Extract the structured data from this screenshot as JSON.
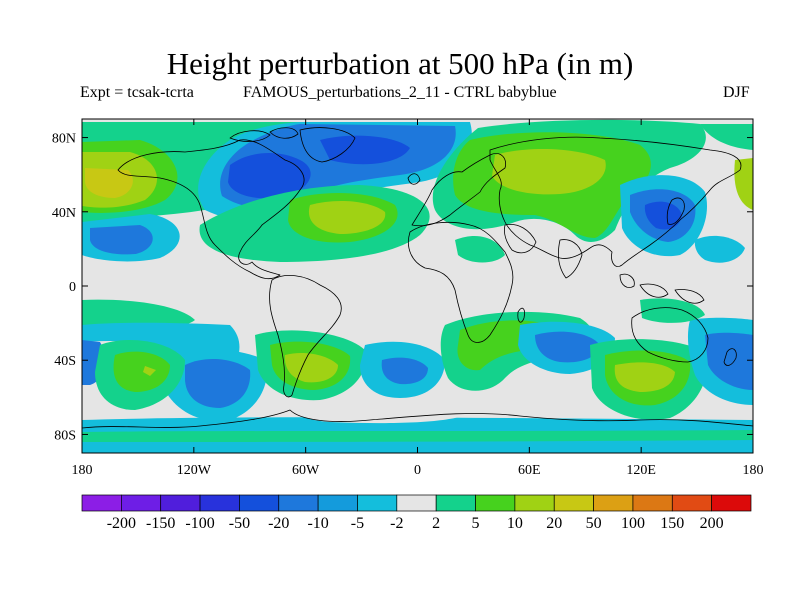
{
  "title": "Height perturbation at 500 hPa (in m)",
  "expt_label": "Expt = tcsak-tcrta",
  "subtitle": "FAMOUS_perturbations_2_11 - CTRL babyblue",
  "season": "DJF",
  "map": {
    "projection": "cylindrical-equidistant",
    "lon_range": [
      -180,
      180
    ],
    "lat_range": [
      -90,
      90
    ],
    "background_color": "#e5e5e5",
    "lat_ticks": [
      {
        "label": "80N",
        "value": 80
      },
      {
        "label": "40N",
        "value": 40
      },
      {
        "label": "0",
        "value": 0
      },
      {
        "label": "40S",
        "value": -40
      },
      {
        "label": "80S",
        "value": -80
      }
    ],
    "lon_ticks": [
      {
        "label": "180",
        "value": -180
      },
      {
        "label": "120W",
        "value": -120
      },
      {
        "label": "60W",
        "value": -60
      },
      {
        "label": "0",
        "value": 0
      },
      {
        "label": "60E",
        "value": 60
      },
      {
        "label": "120E",
        "value": 120
      },
      {
        "label": "180",
        "value": 180
      }
    ]
  },
  "colorbar": {
    "colors": [
      "#8c1ee6",
      "#6e1ee6",
      "#501edc",
      "#2832dc",
      "#1450dc",
      "#1e78dc",
      "#149bdc",
      "#14bedc",
      "#e5e5e5",
      "#14d28c",
      "#46d21e",
      "#a0d214",
      "#c8c814",
      "#dca014",
      "#dc7814",
      "#e14b14",
      "#dc0a0a"
    ],
    "labels": [
      "-200",
      "-150",
      "-100",
      "-50",
      "-20",
      "-10",
      "-5",
      "-2",
      "2",
      "5",
      "10",
      "20",
      "50",
      "100",
      "150",
      "200"
    ]
  }
}
